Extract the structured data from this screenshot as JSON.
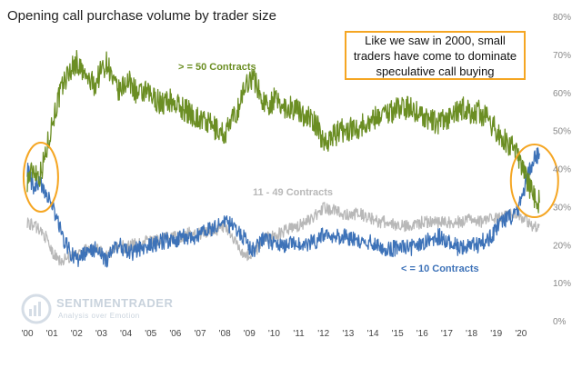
{
  "chart_data": {
    "type": "line",
    "title": "Opening call purchase volume by trader size",
    "x_ticks": [
      "'00",
      "'01",
      "'02",
      "'03",
      "'04",
      "'05",
      "'06",
      "'07",
      "'08",
      "'09",
      "'10",
      "'11",
      "'12",
      "'13",
      "'14",
      "'15",
      "'16",
      "'17",
      "'18",
      "'19",
      "'20"
    ],
    "y_ticks": [
      "0%",
      "10%",
      "20%",
      "30%",
      "40%",
      "50%",
      "60%",
      "70%",
      "80%"
    ],
    "ylim": [
      0,
      80
    ],
    "y_axis_position": "right",
    "grid": false,
    "x": [
      2000.0,
      2000.25,
      2000.5,
      2000.75,
      2001.0,
      2001.25,
      2001.5,
      2001.75,
      2002.0,
      2002.25,
      2002.5,
      2002.75,
      2003.0,
      2003.25,
      2003.5,
      2003.75,
      2004.0,
      2004.25,
      2004.5,
      2004.75,
      2005.0,
      2005.25,
      2005.5,
      2005.75,
      2006.0,
      2006.25,
      2006.5,
      2006.75,
      2007.0,
      2007.25,
      2007.5,
      2007.75,
      2008.0,
      2008.25,
      2008.5,
      2008.75,
      2009.0,
      2009.25,
      2009.5,
      2009.75,
      2010.0,
      2010.25,
      2010.5,
      2010.75,
      2011.0,
      2011.25,
      2011.5,
      2011.75,
      2012.0,
      2012.25,
      2012.5,
      2012.75,
      2013.0,
      2013.25,
      2013.5,
      2013.75,
      2014.0,
      2014.25,
      2014.5,
      2014.75,
      2015.0,
      2015.25,
      2015.5,
      2015.75,
      2016.0,
      2016.25,
      2016.5,
      2016.75,
      2017.0,
      2017.25,
      2017.5,
      2017.75,
      2018.0,
      2018.25,
      2018.5,
      2018.75,
      2019.0,
      2019.25,
      2019.5,
      2019.75,
      2020.0,
      2020.25,
      2020.5,
      2020.75
    ],
    "series": [
      {
        "name": "> = 50 Contracts",
        "color": "#6b8e23",
        "values": [
          37,
          40,
          38,
          44,
          52,
          58,
          63,
          66,
          68,
          65,
          63,
          62,
          66,
          68,
          62,
          60,
          63,
          62,
          59,
          60,
          59,
          58,
          57,
          58,
          57,
          56,
          55,
          54,
          53,
          52,
          51,
          50,
          49,
          52,
          55,
          60,
          64,
          63,
          58,
          57,
          58,
          57,
          56,
          56,
          55,
          54,
          53,
          51,
          47,
          48,
          49,
          50,
          50,
          51,
          51,
          52,
          53,
          54,
          55,
          55,
          56,
          56,
          56,
          55,
          54,
          53,
          52,
          52,
          53,
          54,
          55,
          56,
          54,
          55,
          54,
          52,
          50,
          48,
          46,
          45,
          41,
          37,
          33,
          31
        ]
      },
      {
        "name": "11 - 49 Contracts",
        "color": "#b8b8b8",
        "values": [
          26,
          25,
          24,
          22,
          18,
          16,
          16,
          17,
          17,
          18,
          19,
          19,
          18,
          17,
          19,
          20,
          19,
          20,
          20,
          21,
          21,
          21,
          22,
          22,
          22,
          22,
          23,
          23,
          23,
          23,
          24,
          24,
          25,
          22,
          20,
          18,
          17,
          18,
          21,
          22,
          22,
          23,
          24,
          24,
          25,
          26,
          27,
          28,
          30,
          29,
          29,
          28,
          28,
          28,
          28,
          27,
          27,
          26,
          26,
          26,
          25,
          25,
          25,
          25,
          26,
          26,
          26,
          26,
          26,
          26,
          26,
          26,
          27,
          26,
          26,
          27,
          27,
          27,
          28,
          28,
          27,
          26,
          25,
          25
        ]
      },
      {
        "name": "< = 10 Contracts",
        "color": "#3d72b8",
        "values": [
          40,
          35,
          36,
          34,
          30,
          26,
          21,
          18,
          16,
          17,
          18,
          19,
          17,
          16,
          19,
          20,
          18,
          18,
          19,
          19,
          20,
          20,
          21,
          21,
          21,
          22,
          22,
          22,
          23,
          24,
          24,
          25,
          26,
          25,
          24,
          22,
          19,
          19,
          21,
          21,
          20,
          20,
          20,
          20,
          20,
          20,
          21,
          21,
          23,
          23,
          22,
          22,
          22,
          21,
          21,
          21,
          20,
          20,
          19,
          19,
          19,
          19,
          19,
          20,
          20,
          21,
          22,
          22,
          21,
          20,
          19,
          19,
          20,
          20,
          21,
          22,
          24,
          26,
          27,
          28,
          31,
          38,
          42,
          44
        ]
      }
    ]
  },
  "callout": {
    "line1": "Like we saw in 2000, small",
    "line2": "traders have come to dominate",
    "line3": "speculative call buying"
  },
  "logo": {
    "name": "SENTIMENTRADER",
    "tagline": "Analysis over Emotion"
  },
  "colors": {
    "highlight_ellipse": "#f5a623"
  }
}
